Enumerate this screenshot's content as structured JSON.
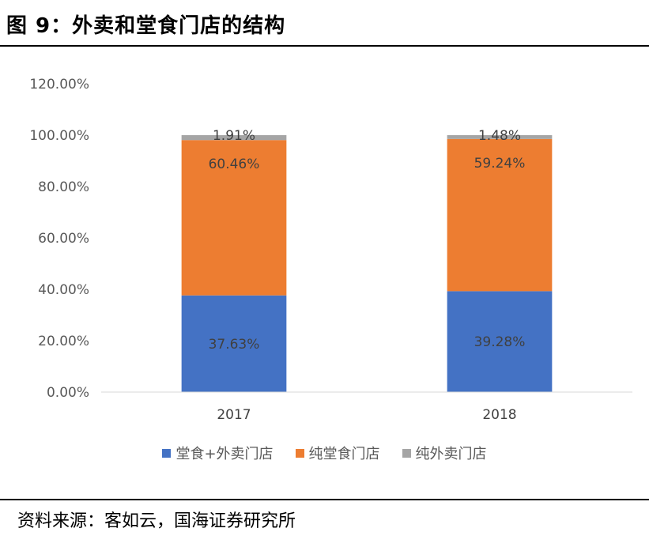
{
  "figure": {
    "title": "图 9：外卖和堂食门店的结构",
    "source": "资料来源：客如云，国海证券研究所"
  },
  "chart_data": {
    "type": "bar",
    "stacked": true,
    "categories": [
      "2017",
      "2018"
    ],
    "series": [
      {
        "name": "堂食+外卖门店",
        "values": [
          37.63,
          39.28
        ],
        "labels": [
          "37.63%",
          "39.28%"
        ],
        "color": "#4472C4"
      },
      {
        "name": "纯堂食门店",
        "values": [
          60.46,
          59.24
        ],
        "labels": [
          "60.46%",
          "59.24%"
        ],
        "color": "#ED7D31"
      },
      {
        "name": "纯外卖门店",
        "values": [
          1.91,
          1.48
        ],
        "labels": [
          "1.91%",
          "1.48%"
        ],
        "color": "#A5A5A5"
      }
    ],
    "ylim": [
      0,
      120
    ],
    "yticks": [
      "0.00%",
      "20.00%",
      "40.00%",
      "60.00%",
      "80.00%",
      "100.00%",
      "120.00%"
    ],
    "legend_position": "bottom",
    "grid": false
  }
}
